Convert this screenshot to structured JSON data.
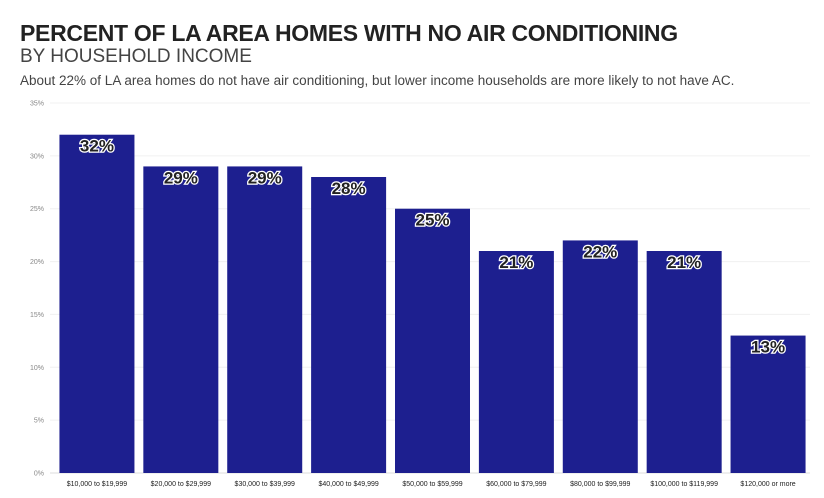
{
  "chart_data": {
    "type": "bar",
    "title": "PERCENT OF LA AREA HOMES WITH NO AIR CONDITIONING",
    "subtitle": "BY HOUSEHOLD INCOME",
    "description": "About 22% of LA area homes do not have air conditioning, but lower income households are more likely to not have AC.",
    "categories": [
      "$10,000 to $19,999",
      "$20,000 to $29,999",
      "$30,000 to $39,999",
      "$40,000 to $49,999",
      "$50,000 to $59,999",
      "$60,000 to $79,999",
      "$80,000 to $99,999",
      "$100,000 to $119,999",
      "$120,000 or more"
    ],
    "values": [
      32,
      29,
      29,
      28,
      25,
      21,
      22,
      21,
      13
    ],
    "ylim": [
      0,
      35
    ],
    "yticks": [
      0,
      5,
      10,
      15,
      20,
      25,
      30,
      35
    ],
    "xlabel": "",
    "ylabel": "",
    "grid": true,
    "bar_color": "#1d1f8f"
  }
}
